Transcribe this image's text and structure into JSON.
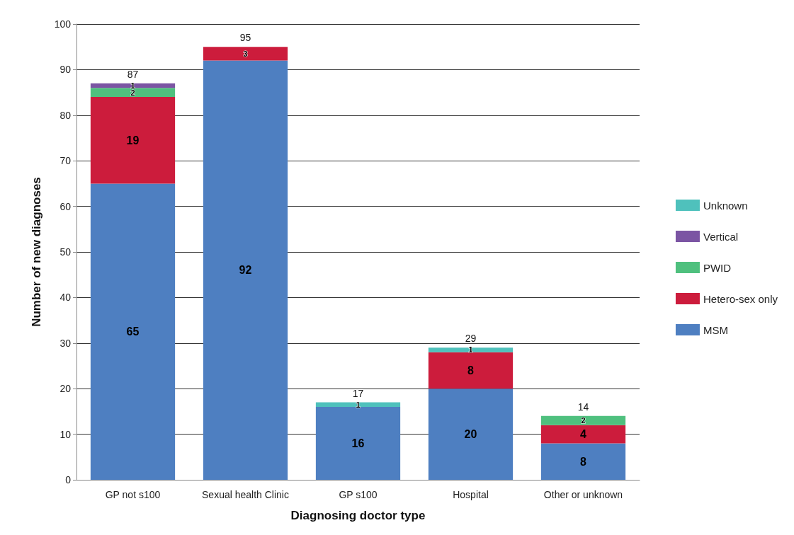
{
  "chart_data": {
    "type": "bar",
    "stacked": true,
    "xlabel": "Diagnosing doctor type",
    "ylabel": "Number of new diagnoses",
    "categories": [
      "GP not s100",
      "Sexual health Clinic",
      "GP s100",
      "Hospital",
      "Other or unknown"
    ],
    "series": [
      {
        "name": "MSM",
        "color": "#4e7fc1",
        "values": [
          65,
          92,
          16,
          20,
          8
        ]
      },
      {
        "name": "Hetero-sex only",
        "color": "#cc1c3c",
        "values": [
          19,
          3,
          null,
          8,
          4
        ]
      },
      {
        "name": "PWID",
        "color": "#4fc07e",
        "values": [
          2,
          null,
          null,
          null,
          2
        ]
      },
      {
        "name": "Vertical",
        "color": "#7b55a3",
        "values": [
          1,
          null,
          null,
          null,
          null
        ]
      },
      {
        "name": "Unknown",
        "color": "#4fc1bc",
        "values": [
          null,
          null,
          1,
          1,
          null
        ]
      }
    ],
    "totals": [
      "87",
      "95",
      "17",
      "29",
      "14"
    ],
    "data_labels": true,
    "ylim": [
      0,
      100
    ],
    "yticks": [
      0,
      10,
      20,
      30,
      40,
      50,
      60,
      70,
      80,
      90,
      100
    ],
    "grid": "y",
    "legend": "right"
  }
}
